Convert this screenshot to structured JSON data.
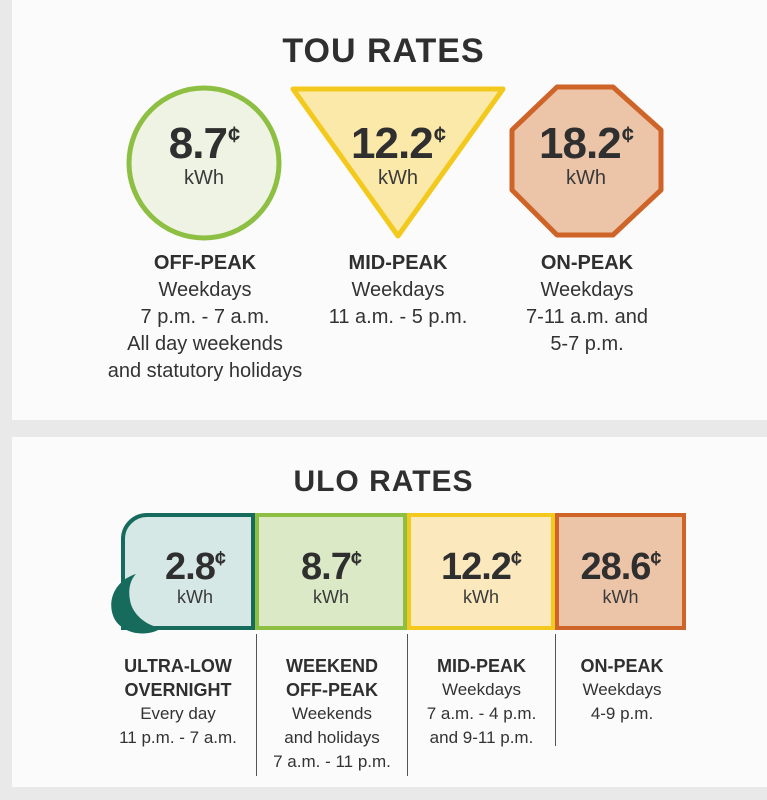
{
  "tou": {
    "title": "TOU RATES",
    "rates": [
      {
        "price": "8.7",
        "cent": "¢",
        "unit": "kWh",
        "name": "OFF-PEAK",
        "lines": [
          "Weekdays",
          "7 p.m. - 7 a.m.",
          "All day weekends",
          "and statutory holidays"
        ],
        "color": "#8dbf42",
        "fill": "#eef3e3"
      },
      {
        "price": "12.2",
        "cent": "¢",
        "unit": "kWh",
        "name": "MID-PEAK",
        "lines": [
          "Weekdays",
          "11 a.m. - 5 p.m."
        ],
        "color": "#f2c91c",
        "fill": "#fbe9a9"
      },
      {
        "price": "18.2",
        "cent": "¢",
        "unit": "kWh",
        "name": "ON-PEAK",
        "lines": [
          "Weekdays",
          "7-11 a.m. and",
          "5-7 p.m."
        ],
        "color": "#cf6428",
        "fill": "#ecc4a8"
      }
    ]
  },
  "ulo": {
    "title": "ULO RATES",
    "rates": [
      {
        "price": "2.8",
        "cent": "¢",
        "unit": "kWh",
        "name_lines": [
          "ULTRA-LOW",
          "OVERNIGHT"
        ],
        "lines": [
          "Every day",
          "11 p.m. - 7 a.m."
        ],
        "color": "#166b5c",
        "fill": "#d6e8e5"
      },
      {
        "price": "8.7",
        "cent": "¢",
        "unit": "kWh",
        "name_lines": [
          "WEEKEND",
          "OFF-PEAK"
        ],
        "lines": [
          "Weekends",
          "and holidays",
          "7 a.m. - 11 p.m."
        ],
        "color": "#8dbf42",
        "fill": "#dce9c6"
      },
      {
        "price": "12.2",
        "cent": "¢",
        "unit": "kWh",
        "name_lines": [
          "MID-PEAK"
        ],
        "lines": [
          "Weekdays",
          "7 a.m. - 4 p.m.",
          "and 9-11 p.m."
        ],
        "color": "#f2c91c",
        "fill": "#fbe9bd"
      },
      {
        "price": "28.6",
        "cent": "¢",
        "unit": "kWh",
        "name_lines": [
          "ON-PEAK"
        ],
        "lines": [
          "Weekdays",
          "4-9 p.m."
        ],
        "color": "#cf6428",
        "fill": "#ecc4a8"
      }
    ],
    "icon": "moon-icon"
  }
}
